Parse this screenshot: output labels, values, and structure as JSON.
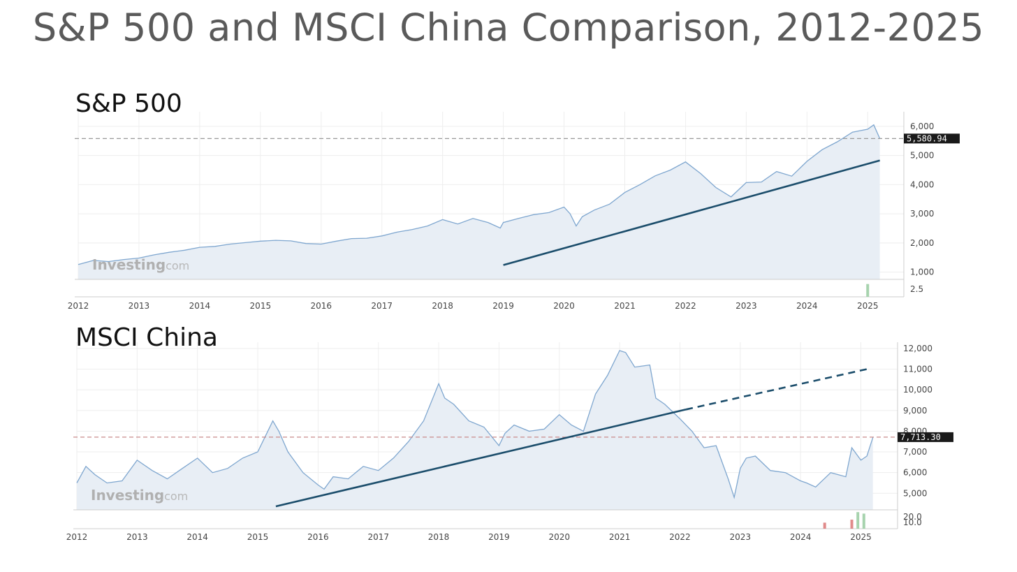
{
  "title": "S&P 500 and MSCI China Comparison, 2012-2025",
  "watermark": {
    "brand": "Investing",
    "suffix": ".com"
  },
  "colors": {
    "line": "#7ea6cf",
    "fill": "#e8eef5",
    "trend": "#1b4d6b",
    "grid": "#eeeeee",
    "tag_bg": "#1a1a1a",
    "up_bar": "#a7d3ae",
    "down_bar": "#e08a8a",
    "sp_dash": "#999999",
    "msci_dash": "#c98a8a"
  },
  "chart_data": [
    {
      "type": "line",
      "title": "S&P 500",
      "x_ticks": [
        "2012",
        "2013",
        "2014",
        "2015",
        "2016",
        "2017",
        "2018",
        "2019",
        "2020",
        "2021",
        "2022",
        "2023",
        "2024",
        "2025"
      ],
      "y_ticks": [
        "1,000",
        "2,000",
        "3,000",
        "4,000",
        "5,000",
        "6,000"
      ],
      "ylim": [
        750,
        6500
      ],
      "xlim": [
        2012.0,
        2025.4
      ],
      "current_price": 5580.94,
      "current_label": "5,580.94",
      "volume_tick": "2.5",
      "volume_bars": [
        {
          "x": 2025.0,
          "value": 2.2,
          "dir": "up"
        }
      ],
      "trendline": {
        "start": [
          2019.0,
          1240
        ],
        "end": [
          2025.2,
          4830
        ],
        "dashed_extension": null
      },
      "x": [
        2012.0,
        2012.25,
        2012.5,
        2012.75,
        2013.0,
        2013.25,
        2013.5,
        2013.75,
        2014.0,
        2014.25,
        2014.5,
        2014.75,
        2015.0,
        2015.25,
        2015.5,
        2015.75,
        2016.0,
        2016.25,
        2016.5,
        2016.75,
        2017.0,
        2017.25,
        2017.5,
        2017.75,
        2018.0,
        2018.25,
        2018.5,
        2018.75,
        2018.95,
        2019.0,
        2019.25,
        2019.5,
        2019.75,
        2020.0,
        2020.1,
        2020.2,
        2020.3,
        2020.5,
        2020.75,
        2021.0,
        2021.25,
        2021.5,
        2021.75,
        2022.0,
        2022.25,
        2022.5,
        2022.75,
        2023.0,
        2023.25,
        2023.5,
        2023.75,
        2024.0,
        2024.25,
        2024.5,
        2024.75,
        2025.0,
        2025.1,
        2025.2
      ],
      "values": [
        1260,
        1400,
        1360,
        1430,
        1480,
        1590,
        1680,
        1750,
        1850,
        1880,
        1960,
        2010,
        2060,
        2090,
        2070,
        1980,
        1960,
        2060,
        2150,
        2160,
        2240,
        2370,
        2460,
        2580,
        2800,
        2650,
        2840,
        2700,
        2510,
        2700,
        2840,
        2970,
        3040,
        3230,
        3000,
        2580,
        2900,
        3130,
        3330,
        3730,
        4000,
        4300,
        4500,
        4780,
        4380,
        3900,
        3580,
        4070,
        4090,
        4450,
        4290,
        4800,
        5200,
        5470,
        5800,
        5900,
        6050,
        5580
      ]
    },
    {
      "type": "line",
      "title": "MSCI China",
      "x_ticks": [
        "2012",
        "2013",
        "2014",
        "2015",
        "2016",
        "2017",
        "2018",
        "2019",
        "2020",
        "2021",
        "2022",
        "2023",
        "2024",
        "2025"
      ],
      "y_ticks": [
        "5,000",
        "6,000",
        "7,000",
        "8,000",
        "9,000",
        "10,000",
        "11,000",
        "12,000"
      ],
      "ylim": [
        4200,
        12300
      ],
      "xlim": [
        2012.0,
        2025.4
      ],
      "current_price": 7713.3,
      "current_label": "7,713.30",
      "volume_ticks": [
        "20.0",
        "10.0"
      ],
      "volume_bars": [
        {
          "x": 2024.4,
          "value": 8,
          "dir": "down"
        },
        {
          "x": 2024.85,
          "value": 12,
          "dir": "down"
        },
        {
          "x": 2024.95,
          "value": 22,
          "dir": "up"
        },
        {
          "x": 2025.05,
          "value": 20,
          "dir": "up"
        }
      ],
      "trendline": {
        "start": [
          2015.3,
          4370
        ],
        "end": [
          2022.1,
          9050
        ],
        "dashed_extension": [
          2025.1,
          11000
        ]
      },
      "x": [
        2012.0,
        2012.15,
        2012.3,
        2012.5,
        2012.75,
        2013.0,
        2013.25,
        2013.5,
        2013.75,
        2014.0,
        2014.25,
        2014.5,
        2014.75,
        2015.0,
        2015.25,
        2015.35,
        2015.5,
        2015.75,
        2016.0,
        2016.1,
        2016.25,
        2016.5,
        2016.75,
        2017.0,
        2017.25,
        2017.5,
        2017.75,
        2018.0,
        2018.1,
        2018.25,
        2018.5,
        2018.75,
        2019.0,
        2019.1,
        2019.25,
        2019.5,
        2019.75,
        2020.0,
        2020.2,
        2020.4,
        2020.6,
        2020.8,
        2021.0,
        2021.1,
        2021.25,
        2021.5,
        2021.6,
        2021.75,
        2022.0,
        2022.2,
        2022.4,
        2022.6,
        2022.8,
        2022.9,
        2023.0,
        2023.1,
        2023.25,
        2023.5,
        2023.75,
        2024.0,
        2024.1,
        2024.25,
        2024.5,
        2024.75,
        2024.85,
        2025.0,
        2025.1,
        2025.2
      ],
      "values": [
        5500,
        6300,
        5900,
        5500,
        5600,
        6600,
        6100,
        5700,
        6200,
        6700,
        6000,
        6200,
        6700,
        7000,
        8500,
        8000,
        7000,
        6000,
        5400,
        5200,
        5800,
        5700,
        6300,
        6100,
        6700,
        7500,
        8500,
        10300,
        9600,
        9300,
        8500,
        8200,
        7300,
        7900,
        8300,
        8000,
        8100,
        8800,
        8300,
        8000,
        9800,
        10700,
        11900,
        11800,
        11100,
        11200,
        9600,
        9300,
        8600,
        8000,
        7200,
        7300,
        5700,
        4800,
        6200,
        6700,
        6800,
        6100,
        6000,
        5600,
        5500,
        5300,
        6000,
        5800,
        7200,
        6600,
        6800,
        7700
      ]
    }
  ]
}
